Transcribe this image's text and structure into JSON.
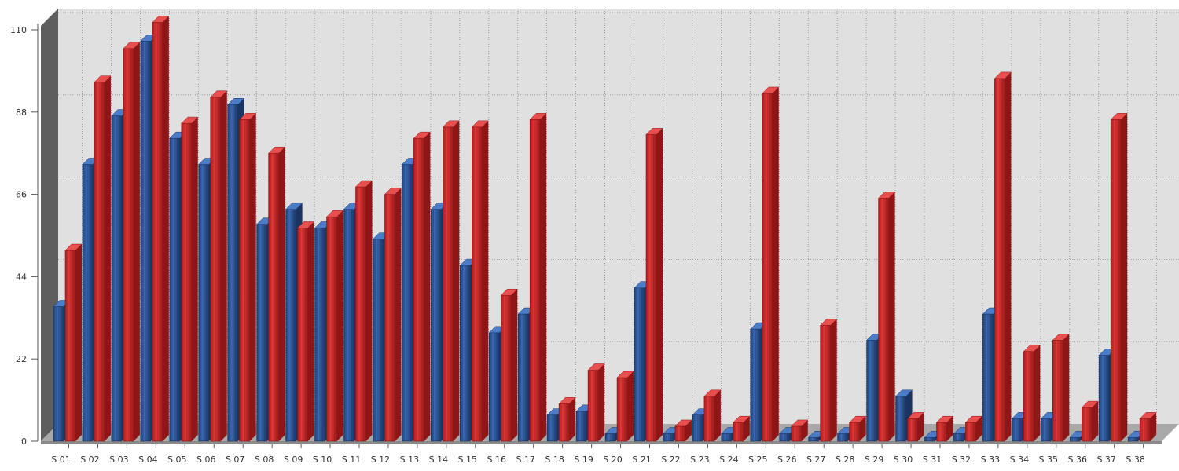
{
  "chart_data": {
    "type": "bar",
    "title": "",
    "xlabel": "",
    "ylabel": "",
    "ylim": [
      0,
      110
    ],
    "yticks": [
      0,
      22,
      44,
      66,
      88,
      110
    ],
    "grid": true,
    "categories": [
      "S 01",
      "S 02",
      "S 03",
      "S 04",
      "S 05",
      "S 06",
      "S 07",
      "S 08",
      "S 09",
      "S 10",
      "S 11",
      "S 12",
      "S 13",
      "S 14",
      "S 15",
      "S 16",
      "S 17",
      "S 18",
      "S 19",
      "S 20",
      "S 21",
      "S 22",
      "S 23",
      "S 24",
      "S 25",
      "S 26",
      "S 27",
      "S 28",
      "S 29",
      "S 30",
      "S 31",
      "S 32",
      "S 33",
      "S 34",
      "S 35",
      "S 36",
      "S 37",
      "S 38"
    ],
    "series": [
      {
        "color": "#2e5a9e",
        "values": [
          36,
          74,
          87,
          107,
          81,
          74,
          90,
          58,
          62,
          57,
          62,
          54,
          74,
          62,
          47,
          29,
          34,
          7,
          8,
          2,
          41,
          2,
          7,
          2,
          30,
          2,
          1,
          2,
          27,
          12,
          1,
          2,
          34,
          6,
          6,
          1,
          23,
          1
        ]
      },
      {
        "color": "#d42a2a",
        "values": [
          51,
          96,
          105,
          112,
          85,
          92,
          86,
          77,
          57,
          60,
          68,
          66,
          81,
          84,
          84,
          39,
          86,
          10,
          19,
          17,
          82,
          4,
          12,
          5,
          93,
          4,
          31,
          5,
          65,
          6,
          5,
          5,
          97,
          24,
          27,
          9,
          86,
          6
        ]
      }
    ],
    "colors": {
      "plot_background": "#e0e0e0",
      "grid": "#8c8c8c",
      "wall_side": "#5e5e5e",
      "floor": "#a8a8a8",
      "series_1": "#2e5a9e",
      "series_2": "#d42a2a"
    }
  }
}
